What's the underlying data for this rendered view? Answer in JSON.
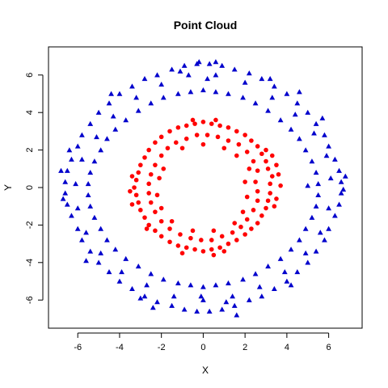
{
  "chart_data": {
    "type": "scatter",
    "title": "Point Cloud",
    "xlabel": "X",
    "ylabel": "Y",
    "xlim": [
      -7.4,
      7.6
    ],
    "ylim": [
      -7.5,
      7.5
    ],
    "xticks": [
      -6,
      -4,
      -2,
      0,
      2,
      4,
      6
    ],
    "yticks": [
      -6,
      -4,
      -2,
      0,
      2,
      4,
      6
    ],
    "grid": false,
    "legend": "none",
    "series": [
      {
        "marker": "circle",
        "color": "#ff0000",
        "points": [
          [
            3.2,
            0.2
          ],
          [
            3.3,
            0.6
          ],
          [
            3.1,
            1.0
          ],
          [
            3.0,
            1.4
          ],
          [
            2.8,
            1.8
          ],
          [
            2.6,
            2.2
          ],
          [
            2.3,
            2.5
          ],
          [
            2.0,
            2.8
          ],
          [
            1.6,
            3.0
          ],
          [
            1.2,
            3.2
          ],
          [
            0.8,
            3.3
          ],
          [
            0.4,
            3.4
          ],
          [
            0.0,
            3.5
          ],
          [
            -0.4,
            3.4
          ],
          [
            -0.8,
            3.3
          ],
          [
            -1.2,
            3.2
          ],
          [
            -1.6,
            3.0
          ],
          [
            -2.0,
            2.7
          ],
          [
            -2.3,
            2.4
          ],
          [
            -2.6,
            2.0
          ],
          [
            -2.8,
            1.6
          ],
          [
            -3.0,
            1.2
          ],
          [
            -3.1,
            0.8
          ],
          [
            -3.2,
            0.4
          ],
          [
            -3.3,
            0.0
          ],
          [
            -3.2,
            -0.4
          ],
          [
            -3.1,
            -0.8
          ],
          [
            -3.0,
            -1.2
          ],
          [
            -2.8,
            -1.6
          ],
          [
            -2.6,
            -2.0
          ],
          [
            -2.3,
            -2.3
          ],
          [
            -2.0,
            -2.6
          ],
          [
            -1.6,
            -2.9
          ],
          [
            -1.2,
            -3.1
          ],
          [
            -0.8,
            -3.2
          ],
          [
            -0.4,
            -3.3
          ],
          [
            0.0,
            -3.4
          ],
          [
            0.4,
            -3.3
          ],
          [
            0.8,
            -3.2
          ],
          [
            1.2,
            -3.0
          ],
          [
            1.6,
            -2.8
          ],
          [
            2.0,
            -2.5
          ],
          [
            2.3,
            -2.2
          ],
          [
            2.6,
            -1.9
          ],
          [
            2.8,
            -1.5
          ],
          [
            3.0,
            -1.1
          ],
          [
            3.1,
            -0.7
          ],
          [
            3.2,
            -0.3
          ],
          [
            2.5,
            0.3
          ],
          [
            2.6,
            0.9
          ],
          [
            2.4,
            1.4
          ],
          [
            2.1,
            1.9
          ],
          [
            1.7,
            2.3
          ],
          [
            1.2,
            2.5
          ],
          [
            0.7,
            2.7
          ],
          [
            0.2,
            2.8
          ],
          [
            -0.3,
            2.8
          ],
          [
            -0.8,
            2.6
          ],
          [
            -1.3,
            2.4
          ],
          [
            -1.7,
            2.1
          ],
          [
            -2.0,
            1.7
          ],
          [
            -2.3,
            1.2
          ],
          [
            -2.5,
            0.7
          ],
          [
            -2.6,
            0.2
          ],
          [
            -2.6,
            -0.3
          ],
          [
            -2.5,
            -0.8
          ],
          [
            -2.3,
            -1.3
          ],
          [
            -2.0,
            -1.8
          ],
          [
            -1.6,
            -2.2
          ],
          [
            -1.1,
            -2.5
          ],
          [
            -0.6,
            -2.7
          ],
          [
            -0.1,
            -2.8
          ],
          [
            0.4,
            -2.8
          ],
          [
            0.9,
            -2.6
          ],
          [
            1.4,
            -2.4
          ],
          [
            1.8,
            -2.1
          ],
          [
            2.1,
            -1.7
          ],
          [
            2.4,
            -1.2
          ],
          [
            2.6,
            -0.7
          ],
          [
            2.6,
            -0.2
          ],
          [
            3.7,
            0.1
          ],
          [
            3.6,
            0.7
          ],
          [
            3.5,
            1.2
          ],
          [
            3.3,
            1.7
          ],
          [
            3.5,
            -0.6
          ],
          [
            3.4,
            -1.0
          ],
          [
            -3.4,
            0.6
          ],
          [
            -3.5,
            -0.2
          ],
          [
            -3.4,
            -0.9
          ],
          [
            -0.5,
            3.6
          ],
          [
            0.6,
            3.6
          ],
          [
            -1.0,
            -3.5
          ],
          [
            0.5,
            -3.6
          ],
          [
            1.0,
            -3.4
          ],
          [
            3.0,
            2.0
          ],
          [
            -2.7,
            -2.2
          ],
          [
            2.2,
            1.0
          ],
          [
            2.0,
            0.3
          ],
          [
            2.1,
            -0.5
          ],
          [
            1.9,
            -1.3
          ],
          [
            -2.1,
            0.5
          ],
          [
            -2.2,
            -0.4
          ],
          [
            -2.0,
            -1.1
          ],
          [
            -1.9,
            1.0
          ],
          [
            1.0,
            2.1
          ],
          [
            -1.0,
            2.1
          ],
          [
            0.0,
            2.3
          ],
          [
            0.5,
            -2.3
          ],
          [
            -0.5,
            -2.3
          ],
          [
            1.5,
            -1.9
          ],
          [
            -1.5,
            -1.8
          ],
          [
            1.6,
            1.7
          ]
        ]
      },
      {
        "marker": "triangle",
        "color": "#0000cc",
        "points": [
          [
            6.6,
            0.3
          ],
          [
            6.5,
            0.9
          ],
          [
            6.3,
            1.5
          ],
          [
            6.0,
            2.2
          ],
          [
            5.8,
            2.8
          ],
          [
            5.4,
            3.4
          ],
          [
            5.0,
            4.0
          ],
          [
            4.5,
            4.5
          ],
          [
            4.0,
            5.0
          ],
          [
            3.4,
            5.4
          ],
          [
            2.8,
            5.8
          ],
          [
            2.2,
            6.1
          ],
          [
            1.5,
            6.3
          ],
          [
            0.9,
            6.5
          ],
          [
            0.3,
            6.6
          ],
          [
            -0.3,
            6.6
          ],
          [
            -0.9,
            6.5
          ],
          [
            -1.5,
            6.3
          ],
          [
            -2.2,
            6.0
          ],
          [
            -2.8,
            5.8
          ],
          [
            -3.4,
            5.4
          ],
          [
            -4.0,
            5.0
          ],
          [
            -4.5,
            4.5
          ],
          [
            -5.0,
            4.0
          ],
          [
            -5.4,
            3.4
          ],
          [
            -5.8,
            2.8
          ],
          [
            -6.0,
            2.2
          ],
          [
            -6.3,
            1.5
          ],
          [
            -6.5,
            0.9
          ],
          [
            -6.6,
            0.3
          ],
          [
            -6.6,
            -0.3
          ],
          [
            -6.5,
            -0.9
          ],
          [
            -6.3,
            -1.5
          ],
          [
            -6.0,
            -2.2
          ],
          [
            -5.8,
            -2.8
          ],
          [
            -5.4,
            -3.4
          ],
          [
            -5.0,
            -4.0
          ],
          [
            -4.5,
            -4.5
          ],
          [
            -4.0,
            -5.0
          ],
          [
            -3.4,
            -5.4
          ],
          [
            -2.8,
            -5.8
          ],
          [
            -2.2,
            -6.1
          ],
          [
            -1.5,
            -6.3
          ],
          [
            -0.9,
            -6.5
          ],
          [
            -0.3,
            -6.6
          ],
          [
            0.3,
            -6.6
          ],
          [
            0.9,
            -6.5
          ],
          [
            1.5,
            -6.3
          ],
          [
            2.2,
            -6.0
          ],
          [
            2.8,
            -5.8
          ],
          [
            3.4,
            -5.4
          ],
          [
            4.0,
            -5.0
          ],
          [
            4.5,
            -4.5
          ],
          [
            5.0,
            -4.0
          ],
          [
            5.4,
            -3.4
          ],
          [
            5.8,
            -2.8
          ],
          [
            6.0,
            -2.2
          ],
          [
            6.3,
            -1.5
          ],
          [
            6.5,
            -0.9
          ],
          [
            6.6,
            -0.3
          ],
          [
            5.5,
            0.2
          ],
          [
            5.4,
            0.8
          ],
          [
            5.2,
            1.4
          ],
          [
            4.9,
            2.0
          ],
          [
            4.6,
            2.6
          ],
          [
            4.2,
            3.1
          ],
          [
            3.7,
            3.6
          ],
          [
            3.1,
            4.1
          ],
          [
            2.5,
            4.5
          ],
          [
            1.9,
            4.8
          ],
          [
            1.2,
            5.0
          ],
          [
            0.6,
            5.1
          ],
          [
            0.0,
            5.2
          ],
          [
            -0.6,
            5.1
          ],
          [
            -1.2,
            5.0
          ],
          [
            -1.9,
            4.8
          ],
          [
            -2.5,
            4.5
          ],
          [
            -3.1,
            4.1
          ],
          [
            -3.7,
            3.6
          ],
          [
            -4.2,
            3.1
          ],
          [
            -4.6,
            2.6
          ],
          [
            -4.9,
            2.0
          ],
          [
            -5.2,
            1.4
          ],
          [
            -5.4,
            0.8
          ],
          [
            -5.5,
            0.2
          ],
          [
            -5.5,
            -0.4
          ],
          [
            -5.4,
            -1.0
          ],
          [
            -5.2,
            -1.6
          ],
          [
            -4.9,
            -2.2
          ],
          [
            -4.6,
            -2.8
          ],
          [
            -4.2,
            -3.3
          ],
          [
            -3.7,
            -3.8
          ],
          [
            -3.1,
            -4.2
          ],
          [
            -2.5,
            -4.6
          ],
          [
            -1.9,
            -4.9
          ],
          [
            -1.2,
            -5.1
          ],
          [
            -0.6,
            -5.2
          ],
          [
            0.0,
            -5.3
          ],
          [
            0.6,
            -5.2
          ],
          [
            1.2,
            -5.1
          ],
          [
            1.9,
            -4.9
          ],
          [
            2.5,
            -4.6
          ],
          [
            3.1,
            -4.2
          ],
          [
            3.7,
            -3.8
          ],
          [
            4.2,
            -3.3
          ],
          [
            4.6,
            -2.8
          ],
          [
            4.9,
            -2.2
          ],
          [
            5.2,
            -1.6
          ],
          [
            5.4,
            -1.0
          ],
          [
            5.5,
            -0.4
          ],
          [
            6.1,
            0.5
          ],
          [
            5.9,
            1.7
          ],
          [
            5.3,
            2.9
          ],
          [
            4.4,
            3.9
          ],
          [
            3.3,
            4.8
          ],
          [
            2.0,
            5.6
          ],
          [
            0.6,
            6.0
          ],
          [
            -0.7,
            6.0
          ],
          [
            -2.0,
            5.5
          ],
          [
            -3.2,
            4.8
          ],
          [
            -4.3,
            3.8
          ],
          [
            -5.1,
            2.7
          ],
          [
            -5.8,
            1.5
          ],
          [
            -6.1,
            0.2
          ],
          [
            -6.0,
            -1.1
          ],
          [
            -5.6,
            -2.4
          ],
          [
            -4.9,
            -3.5
          ],
          [
            -3.9,
            -4.5
          ],
          [
            -2.7,
            -5.2
          ],
          [
            -1.4,
            -5.8
          ],
          [
            0.0,
            -6.0
          ],
          [
            1.4,
            -5.8
          ],
          [
            2.7,
            -5.3
          ],
          [
            3.9,
            -4.5
          ],
          [
            4.9,
            -3.5
          ],
          [
            5.6,
            -2.4
          ],
          [
            6.0,
            -1.1
          ],
          [
            6.8,
            0.6
          ],
          [
            6.7,
            -0.1
          ],
          [
            -6.8,
            0.9
          ],
          [
            -6.4,
            2.0
          ],
          [
            -6.7,
            -0.6
          ],
          [
            0.6,
            6.7
          ],
          [
            -0.2,
            6.7
          ],
          [
            1.6,
            -6.8
          ],
          [
            -2.4,
            -6.4
          ],
          [
            4.6,
            5.1
          ],
          [
            -4.4,
            5.0
          ],
          [
            5.7,
            3.7
          ],
          [
            -5.6,
            -3.9
          ],
          [
            4.2,
            -5.2
          ],
          [
            -1.1,
            6.2
          ],
          [
            1.1,
            -6.1
          ],
          [
            -3.0,
            -5.9
          ],
          [
            3.2,
            5.8
          ],
          [
            0.2,
            5.8
          ],
          [
            -0.1,
            -5.8
          ],
          [
            5.0,
            0.1
          ]
        ]
      }
    ]
  }
}
